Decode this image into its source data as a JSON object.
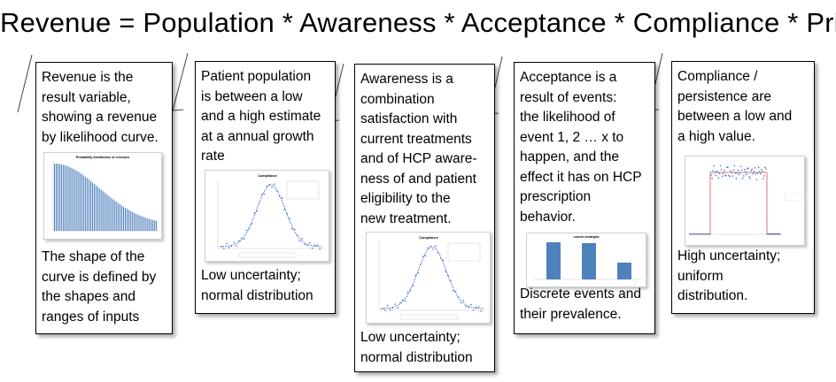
{
  "headline": "Revenue = Population * Awareness * Acceptance * Compliance * Price",
  "boxes": [
    {
      "top_text": "Revenue is the\nresult variable,\nshowing a revenue\nby likelihood curve.",
      "bottom_text": "The shape of the\ncurve is defined by\nthe shapes and\nranges of inputs",
      "thumb_title": "Probability distribution of revenues"
    },
    {
      "top_text": "Patient population\nis between a low\nand a high estimate\nat a annual growth\nrate",
      "bottom_text": "Low uncertainty;\nnormal distribution",
      "thumb_title": "Compliance"
    },
    {
      "top_text": "Awareness is a\ncombination\nsatisfaction with\ncurrent treatments\nand of HCP aware-\nness of and  patient\neligibility  to the\nnew treatment.",
      "bottom_text": "Low uncertainty;\nnormal distribution",
      "thumb_title": "Compliance"
    },
    {
      "top_text": "Acceptance is a\nresult of events:\nthe likelihood of\nevent 1, 2 … x to\nhappen, and the\neffect it has on HCP\nprescription\nbehavior.",
      "bottom_text": "Discrete events and\ntheir prevalence.",
      "thumb_title": "Launch strategies"
    },
    {
      "top_text": "Compliance /\npersistence are\nbetween a low and\na high value.",
      "bottom_text": "High uncertainty;\nuniform\ndistribution.",
      "thumb_title": ""
    }
  ],
  "colors": {
    "bar_blue": "#4f81bd",
    "line_red": "#d9544f",
    "dot_blue": "#4472c4"
  }
}
